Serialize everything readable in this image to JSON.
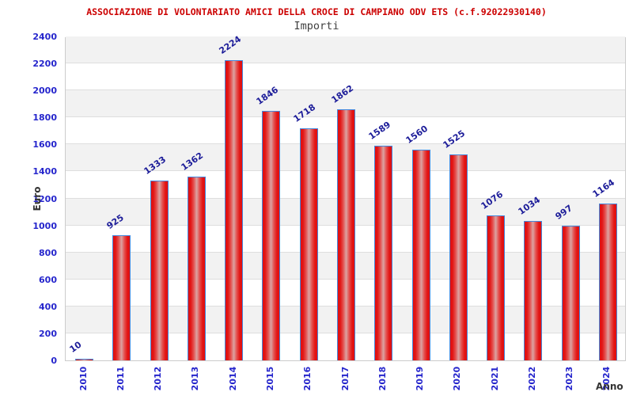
{
  "chart_data": {
    "type": "bar",
    "title": "ASSOCIAZIONE DI VOLONTARIATO AMICI DELLA CROCE DI CAMPIANO ODV ETS (c.f.92022930140)",
    "subtitle": "Importi",
    "xlabel": "Anno",
    "ylabel": "Euro",
    "categories": [
      "2010",
      "2011",
      "2012",
      "2013",
      "2014",
      "2015",
      "2016",
      "2017",
      "2018",
      "2019",
      "2020",
      "2021",
      "2022",
      "2023",
      "2024"
    ],
    "values": [
      10,
      925,
      1333,
      1362,
      2224,
      1846,
      1718,
      1862,
      1589,
      1560,
      1525,
      1076,
      1034,
      997,
      1164
    ],
    "value_labels": [
      "10",
      "925",
      "1333",
      "1362",
      "2224",
      "1846",
      "1718",
      "1862",
      "1589",
      "1560",
      "1525",
      "1076",
      "1034",
      "997",
      "1164"
    ],
    "ylim": [
      0,
      2400
    ],
    "ytick_step": 200,
    "grid": true,
    "bands": "alternating horizontal white/gray per 200",
    "legend_position": "none",
    "colors": {
      "title": "#cc0000",
      "subtitle": "#404040",
      "tick_label": "#2525cc",
      "value_label": "#1c1c99",
      "axis_title": "#333333",
      "bar_edge": "#e01010",
      "bar_center": "#dba3a2",
      "bar_border": "#4488dd",
      "band": "#f2f2f2",
      "gridline": "#dedede",
      "plot_border": "#cccccc"
    }
  }
}
